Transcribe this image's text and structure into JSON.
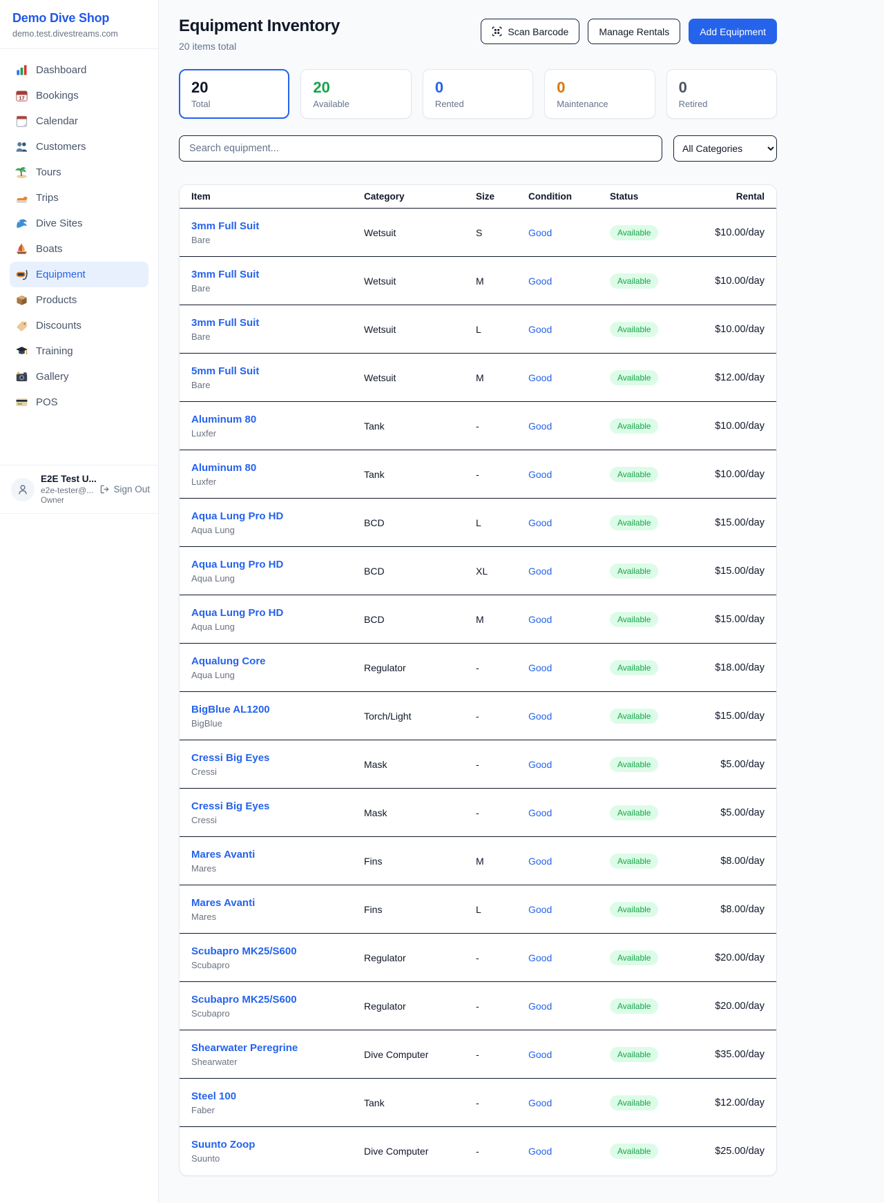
{
  "sidebar": {
    "brand": "Demo Dive Shop",
    "domain": "demo.test.divestreams.com",
    "items": [
      {
        "label": "Dashboard",
        "icon": "dashboard-icon"
      },
      {
        "label": "Bookings",
        "icon": "bookings-icon"
      },
      {
        "label": "Calendar",
        "icon": "calendar-icon"
      },
      {
        "label": "Customers",
        "icon": "customers-icon"
      },
      {
        "label": "Tours",
        "icon": "tours-icon"
      },
      {
        "label": "Trips",
        "icon": "trips-icon"
      },
      {
        "label": "Dive Sites",
        "icon": "dive-sites-icon"
      },
      {
        "label": "Boats",
        "icon": "boats-icon"
      },
      {
        "label": "Equipment",
        "icon": "equipment-icon",
        "active": true
      },
      {
        "label": "Products",
        "icon": "products-icon"
      },
      {
        "label": "Discounts",
        "icon": "discounts-icon"
      },
      {
        "label": "Training",
        "icon": "training-icon"
      },
      {
        "label": "Gallery",
        "icon": "gallery-icon"
      },
      {
        "label": "POS",
        "icon": "pos-icon"
      }
    ],
    "user": {
      "name": "E2E Test U...",
      "email": "e2e-tester@...",
      "role": "Owner",
      "sign_out_label": "Sign Out"
    }
  },
  "header": {
    "title": "Equipment Inventory",
    "subtitle": "20 items total",
    "scan_button": "Scan Barcode",
    "manage_button": "Manage Rentals",
    "add_button": "Add Equipment"
  },
  "stats": [
    {
      "value": "20",
      "label": "Total",
      "color": "#0f172a",
      "selected": true
    },
    {
      "value": "20",
      "label": "Available",
      "color": "#16a34a"
    },
    {
      "value": "0",
      "label": "Rented",
      "color": "#2563eb"
    },
    {
      "value": "0",
      "label": "Maintenance",
      "color": "#d97706"
    },
    {
      "value": "0",
      "label": "Retired",
      "color": "#4b5563"
    }
  ],
  "filters": {
    "search_placeholder": "Search equipment...",
    "category_selected": "All Categories"
  },
  "table": {
    "columns": [
      "Item",
      "Category",
      "Size",
      "Condition",
      "Status",
      "Rental"
    ],
    "rows": [
      {
        "name": "3mm Full Suit",
        "brand": "Bare",
        "category": "Wetsuit",
        "size": "S",
        "condition": "Good",
        "status": "Available",
        "rental": "$10.00/day"
      },
      {
        "name": "3mm Full Suit",
        "brand": "Bare",
        "category": "Wetsuit",
        "size": "M",
        "condition": "Good",
        "status": "Available",
        "rental": "$10.00/day"
      },
      {
        "name": "3mm Full Suit",
        "brand": "Bare",
        "category": "Wetsuit",
        "size": "L",
        "condition": "Good",
        "status": "Available",
        "rental": "$10.00/day"
      },
      {
        "name": "5mm Full Suit",
        "brand": "Bare",
        "category": "Wetsuit",
        "size": "M",
        "condition": "Good",
        "status": "Available",
        "rental": "$12.00/day"
      },
      {
        "name": "Aluminum 80",
        "brand": "Luxfer",
        "category": "Tank",
        "size": "-",
        "condition": "Good",
        "status": "Available",
        "rental": "$10.00/day"
      },
      {
        "name": "Aluminum 80",
        "brand": "Luxfer",
        "category": "Tank",
        "size": "-",
        "condition": "Good",
        "status": "Available",
        "rental": "$10.00/day"
      },
      {
        "name": "Aqua Lung Pro HD",
        "brand": "Aqua Lung",
        "category": "BCD",
        "size": "L",
        "condition": "Good",
        "status": "Available",
        "rental": "$15.00/day"
      },
      {
        "name": "Aqua Lung Pro HD",
        "brand": "Aqua Lung",
        "category": "BCD",
        "size": "XL",
        "condition": "Good",
        "status": "Available",
        "rental": "$15.00/day"
      },
      {
        "name": "Aqua Lung Pro HD",
        "brand": "Aqua Lung",
        "category": "BCD",
        "size": "M",
        "condition": "Good",
        "status": "Available",
        "rental": "$15.00/day"
      },
      {
        "name": "Aqualung Core",
        "brand": "Aqua Lung",
        "category": "Regulator",
        "size": "-",
        "condition": "Good",
        "status": "Available",
        "rental": "$18.00/day"
      },
      {
        "name": "BigBlue AL1200",
        "brand": "BigBlue",
        "category": "Torch/Light",
        "size": "-",
        "condition": "Good",
        "status": "Available",
        "rental": "$15.00/day"
      },
      {
        "name": "Cressi Big Eyes",
        "brand": "Cressi",
        "category": "Mask",
        "size": "-",
        "condition": "Good",
        "status": "Available",
        "rental": "$5.00/day"
      },
      {
        "name": "Cressi Big Eyes",
        "brand": "Cressi",
        "category": "Mask",
        "size": "-",
        "condition": "Good",
        "status": "Available",
        "rental": "$5.00/day"
      },
      {
        "name": "Mares Avanti",
        "brand": "Mares",
        "category": "Fins",
        "size": "M",
        "condition": "Good",
        "status": "Available",
        "rental": "$8.00/day"
      },
      {
        "name": "Mares Avanti",
        "brand": "Mares",
        "category": "Fins",
        "size": "L",
        "condition": "Good",
        "status": "Available",
        "rental": "$8.00/day"
      },
      {
        "name": "Scubapro MK25/S600",
        "brand": "Scubapro",
        "category": "Regulator",
        "size": "-",
        "condition": "Good",
        "status": "Available",
        "rental": "$20.00/day"
      },
      {
        "name": "Scubapro MK25/S600",
        "brand": "Scubapro",
        "category": "Regulator",
        "size": "-",
        "condition": "Good",
        "status": "Available",
        "rental": "$20.00/day"
      },
      {
        "name": "Shearwater Peregrine",
        "brand": "Shearwater",
        "category": "Dive Computer",
        "size": "-",
        "condition": "Good",
        "status": "Available",
        "rental": "$35.00/day"
      },
      {
        "name": "Steel 100",
        "brand": "Faber",
        "category": "Tank",
        "size": "-",
        "condition": "Good",
        "status": "Available",
        "rental": "$12.00/day"
      },
      {
        "name": "Suunto Zoop",
        "brand": "Suunto",
        "category": "Dive Computer",
        "size": "-",
        "condition": "Good",
        "status": "Available",
        "rental": "$25.00/day"
      }
    ]
  }
}
